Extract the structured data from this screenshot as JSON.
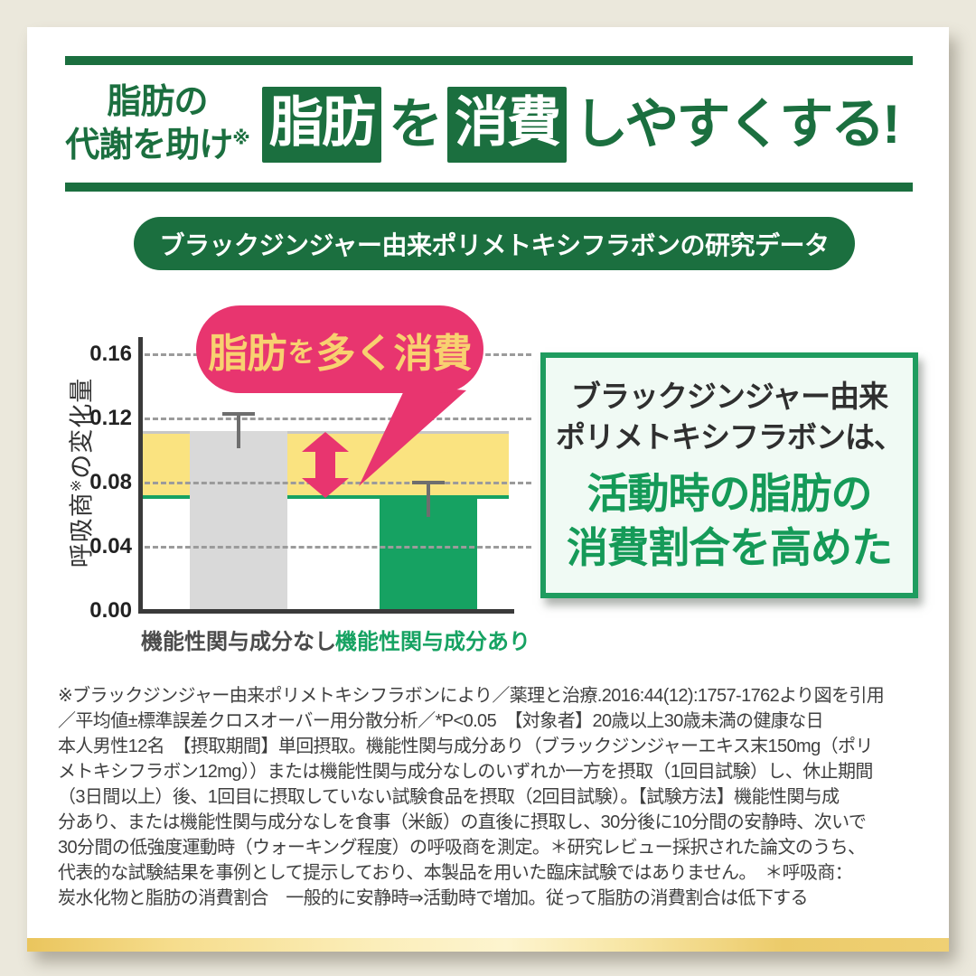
{
  "page": {
    "background": "#ebe8dc",
    "card_background": "#ffffff",
    "brand_green": "#1b6f3f",
    "emerald_green": "#16a262",
    "accent_pink": "#e8356f",
    "band_yellow": "#fae380",
    "bubble_text_yellow": "#f8d170",
    "gold_bar": "#f0d580"
  },
  "header": {
    "eyebrow_line1": "脂肪の",
    "eyebrow_line2": "代謝を助け",
    "eyebrow_ref": "※",
    "boxed_1": "脂肪",
    "particle": "を",
    "boxed_2": "消費",
    "tail": "しやすくする!"
  },
  "banner": {
    "label": "ブラックジンジャー由来ポリメトキシフラボンの研究データ"
  },
  "chart_data": {
    "type": "bar",
    "title": "ブラックジンジャー由来ポリメトキシフラボンの研究データ",
    "ylabel": "呼吸商※の変化量",
    "ylabel_parts": {
      "a": "呼吸商",
      "ref": "※",
      "b": "の変化量"
    },
    "categories": [
      "機能性関与成分なし",
      "機能性関与成分あり"
    ],
    "values": [
      0.112,
      0.07
    ],
    "error_upper": [
      0.124,
      0.081
    ],
    "bar_colors": [
      "#d9d9d9",
      "#16a262"
    ],
    "yticks": [
      0,
      0.04,
      0.08,
      0.12,
      0.16
    ],
    "ylim": [
      0,
      0.16
    ],
    "grid": "dashed-horizontal",
    "highlight_band": {
      "from": 0.07,
      "to": 0.112,
      "color": "#fae380"
    },
    "annotation": "脂肪を多く消費",
    "annotation_parts": {
      "a": "脂肪",
      "b": "を",
      "c": "多く消費"
    }
  },
  "result_box": {
    "line1": "ブラックジンジャー由来",
    "line2": "ポリメトキシフラボンは、",
    "line3": "活動時の脂肪の",
    "line4": "消費割合を高めた"
  },
  "disclaimer": {
    "lines": [
      "※ブラックジンジャー由来ポリメトキシフラボンにより／薬理と治療.2016:44(12):1757-1762より図を引用",
      "／平均値±標準誤差クロスオーバー用分散分析／*P<0.05　【対象者】20歳以上30歳未満の健康な日",
      "本人男性12名　【摂取期間】単回摂取。機能性関与成分あり（ブラックジンジャーエキス末150mg（ポリ",
      "メトキシフラボン12mg））または機能性関与成分なしのいずれか一方を摂取（1回目試験）し、休止期間",
      "（3日間以上）後、1回目に摂取していない試験食品を摂取（2回目試験）。【試験方法】機能性関与成",
      "分あり、または機能性関与成分なしを食事（米飯）の直後に摂取し、30分後に10分間の安静時、次いで",
      "30分間の低強度運動時（ウォーキング程度）の呼吸商を測定。＊研究レビュー採択された論文のうち、",
      "代表的な試験結果を事例として提示しており、本製品を用いた臨床試験ではありません。　＊呼吸商：",
      "炭水化物と脂肪の消費割合　一般的に安静時⇒活動時で増加。従って脂肪の消費割合は低下する"
    ]
  }
}
